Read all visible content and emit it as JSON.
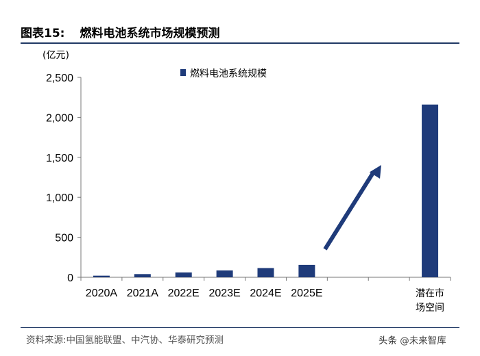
{
  "header": {
    "figure_num": "图表15:",
    "title": "燃料电池系统市场规模预测"
  },
  "footer": {
    "source": "资料来源:中国氢能联盟、中汽协、华泰研究预测",
    "watermark_prefix": "头条 ",
    "watermark_handle": "@未来智库"
  },
  "chart_data": {
    "type": "bar",
    "title": "燃料电池系统市场规模预测",
    "ylabel": "(亿元)",
    "xlabel": "",
    "ylim": [
      0,
      2500
    ],
    "yticks": [
      0,
      500,
      1000,
      1500,
      2000,
      2500
    ],
    "ytick_labels": [
      "0",
      "500",
      "1,000",
      "1,500",
      "2,000",
      "2,500"
    ],
    "categories": [
      "2020A",
      "2021A",
      "2022E",
      "2023E",
      "2024E",
      "2025E",
      "",
      "",
      "潜在市场空间"
    ],
    "category_label_lines": [
      [
        "2020A"
      ],
      [
        "2021A"
      ],
      [
        "2022E"
      ],
      [
        "2023E"
      ],
      [
        "2024E"
      ],
      [
        "2025E"
      ],
      [
        ""
      ],
      [
        ""
      ],
      [
        "潜在市",
        "场空间"
      ]
    ],
    "series": [
      {
        "name": "燃料电池系统规模",
        "color": "#1f3b7a",
        "values": [
          20,
          40,
          60,
          85,
          115,
          155,
          null,
          null,
          2160
        ]
      }
    ],
    "legend": {
      "position": "top-left",
      "entries": [
        "燃料电池系统规模"
      ]
    },
    "annotations": [
      {
        "type": "arrow",
        "description": "upward trend arrow",
        "color": "#1f3b7a"
      }
    ],
    "grid": false
  }
}
